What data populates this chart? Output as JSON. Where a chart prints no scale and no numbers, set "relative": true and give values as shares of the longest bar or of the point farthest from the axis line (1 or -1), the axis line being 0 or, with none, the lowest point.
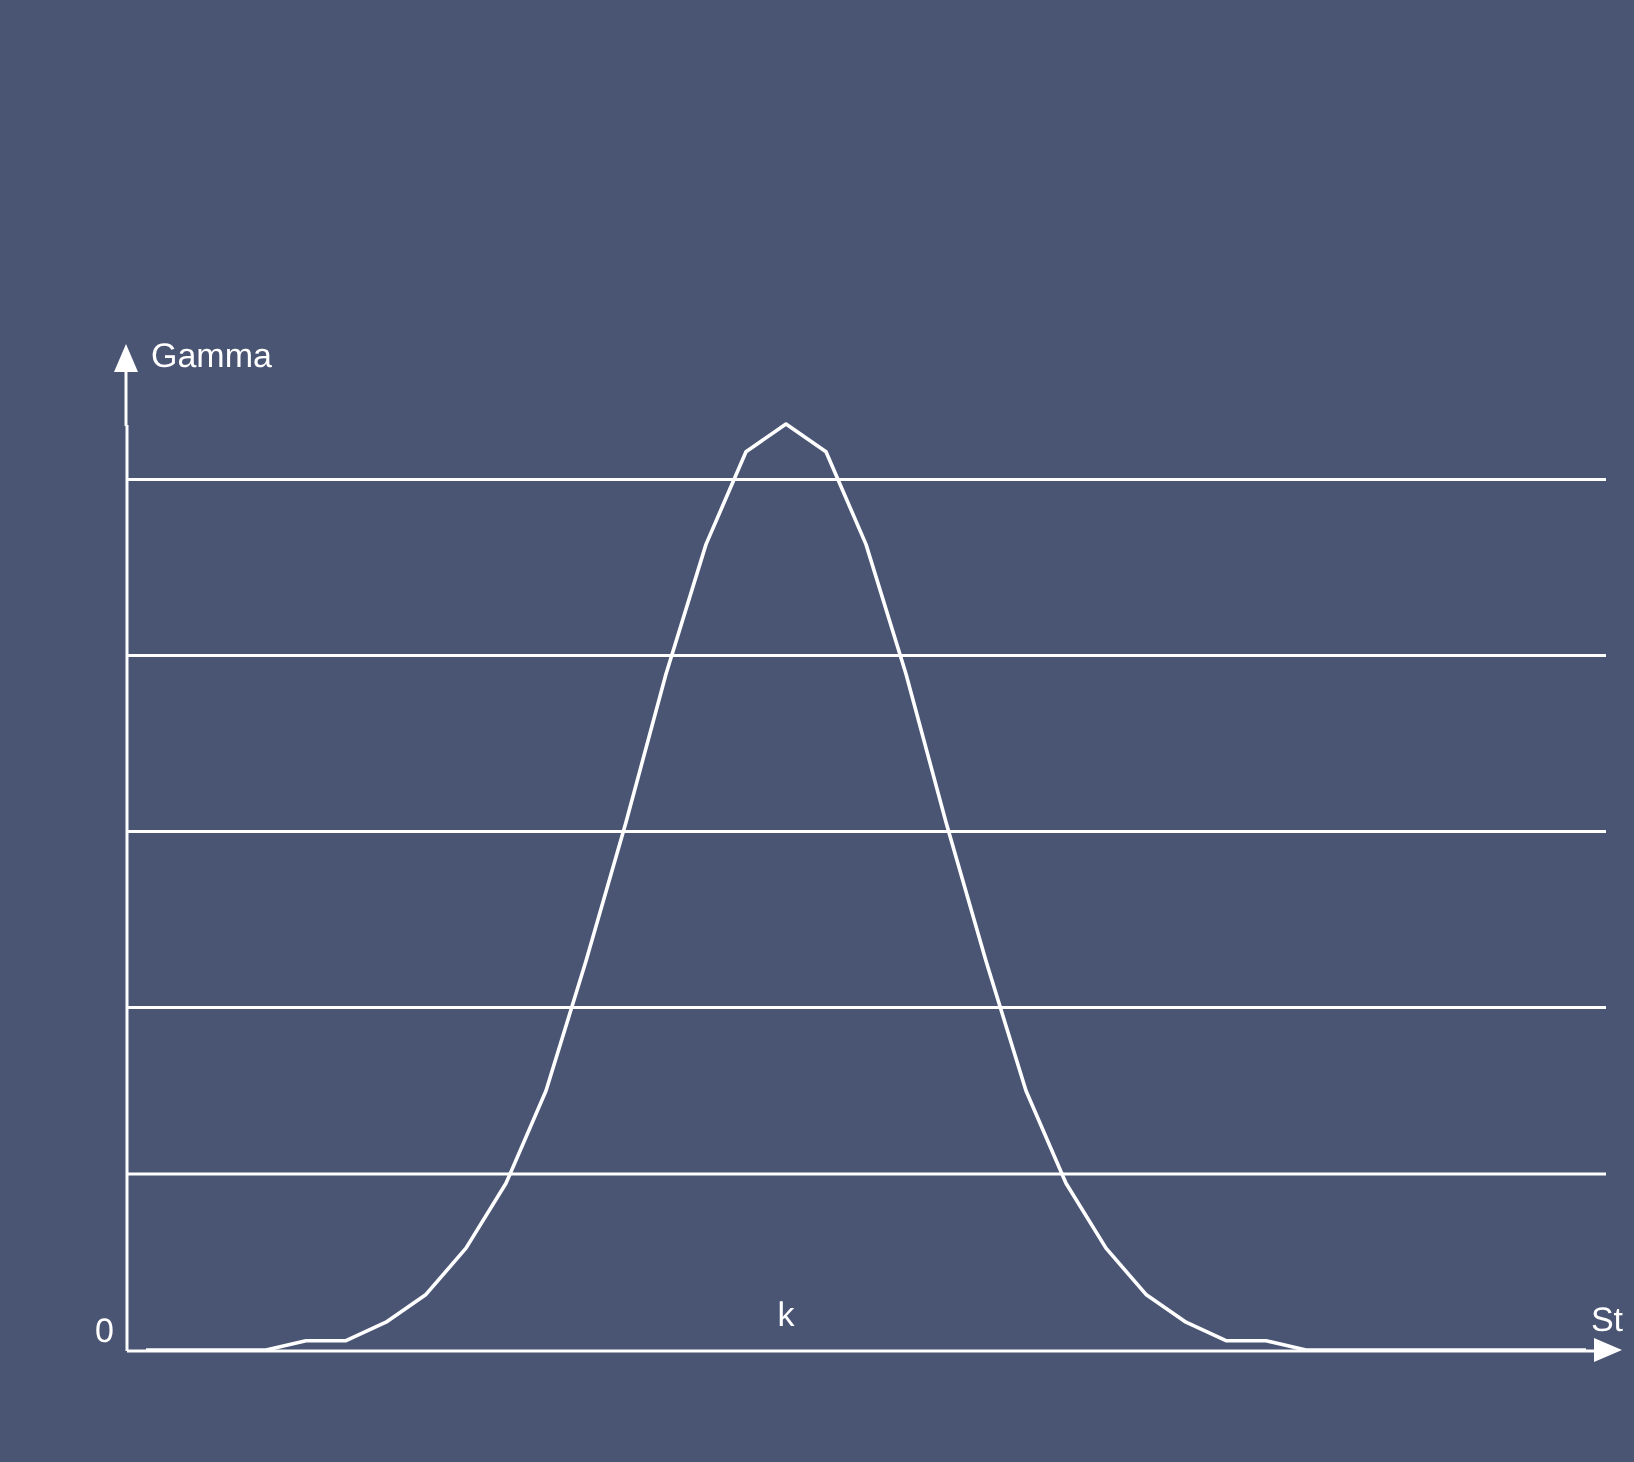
{
  "chart_data": {
    "type": "line",
    "relative": true,
    "xlabel": "St",
    "ylabel": "Gamma",
    "color": "#ffffff",
    "categories": [
      null,
      null,
      null,
      null,
      null,
      null,
      null,
      null,
      null,
      null,
      null,
      null,
      null,
      null,
      null,
      null,
      null,
      null,
      null,
      null,
      null,
      null,
      null,
      null,
      null,
      null,
      null,
      null,
      null,
      null,
      null,
      null,
      null,
      null,
      null,
      null,
      null
    ],
    "values": [
      0,
      0,
      0,
      0,
      0.01,
      0.01,
      0.03,
      0.06,
      0.11,
      0.18,
      0.28,
      0.42,
      0.57,
      0.73,
      0.87,
      0.97,
      1,
      0.97,
      0.87,
      0.73,
      0.57,
      0.42,
      0.28,
      0.18,
      0.11,
      0.06,
      0.03,
      0.01,
      0.01,
      0,
      0,
      0,
      0,
      0,
      0,
      0,
      0
    ],
    "ref_lines": [
      {
        "axis": "y",
        "value": 0.19,
        "color": "#ffffff"
      },
      {
        "axis": "y",
        "value": 0.37,
        "color": "#ffffff"
      },
      {
        "axis": "y",
        "value": 0.56,
        "color": "#ffffff"
      },
      {
        "axis": "y",
        "value": 0.75,
        "color": "#ffffff"
      },
      {
        "axis": "y",
        "value": 0.94,
        "color": "#ffffff"
      }
    ],
    "annotations": [
      "k",
      "0"
    ]
  }
}
